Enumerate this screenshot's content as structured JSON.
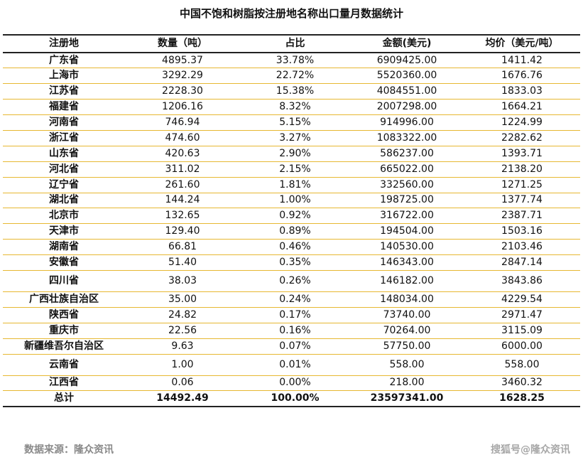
{
  "title": "中国不饱和树脂按注册地名称出口量月数据统计",
  "table": {
    "headers": [
      "注册地",
      "数量（吨）",
      "占比",
      "金额(美元)",
      "均价（美元/吨）"
    ],
    "rows": [
      [
        "广东省",
        "4895.37",
        "33.78%",
        "6909425.00",
        "1411.42"
      ],
      [
        "上海市",
        "3292.29",
        "22.72%",
        "5520360.00",
        "1676.76"
      ],
      [
        "江苏省",
        "2228.30",
        "15.38%",
        "4084551.00",
        "1833.03"
      ],
      [
        "福建省",
        "1206.16",
        "8.32%",
        "2007298.00",
        "1664.21"
      ],
      [
        "河南省",
        "746.94",
        "5.15%",
        "914996.00",
        "1224.99"
      ],
      [
        "浙江省",
        "474.60",
        "3.27%",
        "1083322.00",
        "2282.62"
      ],
      [
        "山东省",
        "420.63",
        "2.90%",
        "586237.00",
        "1393.71"
      ],
      [
        "河北省",
        "311.02",
        "2.15%",
        "665022.00",
        "2138.20"
      ],
      [
        "辽宁省",
        "261.60",
        "1.81%",
        "332560.00",
        "1271.25"
      ],
      [
        "湖北省",
        "144.24",
        "1.00%",
        "198725.00",
        "1377.74"
      ],
      [
        "北京市",
        "132.65",
        "0.92%",
        "316722.00",
        "2387.71"
      ],
      [
        "天津市",
        "129.40",
        "0.89%",
        "194504.00",
        "1503.16"
      ],
      [
        "湖南省",
        "66.81",
        "0.46%",
        "140530.00",
        "2103.46"
      ],
      [
        "安徽省",
        "51.40",
        "0.35%",
        "146343.00",
        "2847.14"
      ],
      [
        "四川省",
        "38.03",
        "0.26%",
        "146182.00",
        "3843.86"
      ],
      [
        "广西壮族自治区",
        "35.00",
        "0.24%",
        "148034.00",
        "4229.54"
      ],
      [
        "陕西省",
        "24.82",
        "0.17%",
        "73740.00",
        "2971.47"
      ],
      [
        "重庆市",
        "22.56",
        "0.16%",
        "70264.00",
        "3115.09"
      ],
      [
        "新疆维吾尔自治区",
        "9.63",
        "0.07%",
        "57750.00",
        "6000.00"
      ],
      [
        "云南省",
        "1.00",
        "0.01%",
        "558.00",
        "558.00"
      ],
      [
        "江西省",
        "0.06",
        "0.00%",
        "218.00",
        "3460.32"
      ]
    ],
    "total": [
      "总计",
      "14492.49",
      "100.00%",
      "23597341.00",
      "1628.25"
    ]
  },
  "source": "数据来源：隆众资讯",
  "watermark": "搜狐号@隆众资讯"
}
